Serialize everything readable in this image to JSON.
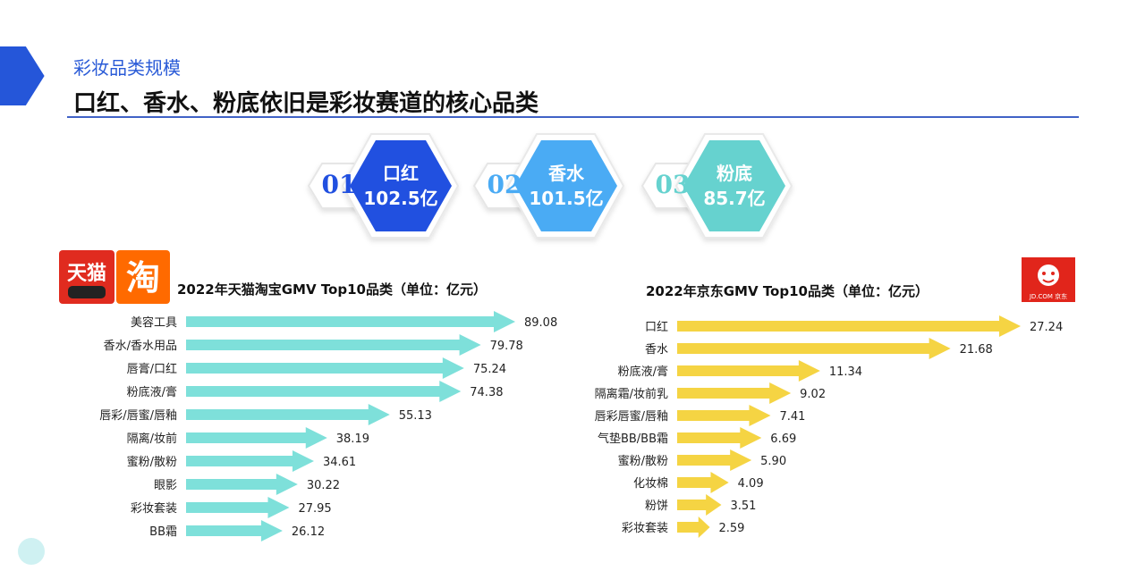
{
  "header": {
    "subtitle": "彩妆品类规模",
    "title": "口红、香水、粉底依旧是彩妆赛道的核心品类"
  },
  "highlights": [
    {
      "num": "01",
      "name": "口红",
      "value": "102.5亿",
      "color": "#2150e0",
      "num_color": "#2150e0"
    },
    {
      "num": "02",
      "name": "香水",
      "value": "101.5亿",
      "color": "#4aabf4",
      "num_color": "#4aabf4"
    },
    {
      "num": "03",
      "name": "粉底",
      "value": "85.7亿",
      "color": "#66d2cf",
      "num_color": "#66d2cf"
    }
  ],
  "logos": {
    "tmall_a": "天猫",
    "tmall_b": "淘",
    "jd": "JD.COM 京东"
  },
  "chart_data": [
    {
      "type": "bar",
      "orientation": "horizontal",
      "title": "2022年天猫淘宝GMV Top10品类（单位：亿元）",
      "categories": [
        "美容工具",
        "香水/香水用品",
        "唇膏/口红",
        "粉底液/膏",
        "唇彩/唇蜜/唇釉",
        "隔离/妆前",
        "蜜粉/散粉",
        "眼影",
        "彩妆套装",
        "BB霜"
      ],
      "values": [
        89.08,
        79.78,
        75.24,
        74.38,
        55.13,
        38.19,
        34.61,
        30.22,
        27.95,
        26.12
      ],
      "labels": [
        "89.08",
        "79.78",
        "75.24",
        "74.38",
        "55.13",
        "38.19",
        "34.61",
        "30.22",
        "27.95",
        "26.12"
      ],
      "color": "#7ee0da",
      "xlim": [
        0,
        89.08
      ]
    },
    {
      "type": "bar",
      "orientation": "horizontal",
      "title": "2022年京东GMV Top10品类（单位：亿元）",
      "categories": [
        "口红",
        "香水",
        "粉底液/膏",
        "隔离霜/妆前乳",
        "唇彩唇蜜/唇釉",
        "气垫BB/BB霜",
        "蜜粉/散粉",
        "化妆棉",
        "粉饼",
        "彩妆套装"
      ],
      "values": [
        27.24,
        21.68,
        11.34,
        9.02,
        7.41,
        6.69,
        5.9,
        4.09,
        3.51,
        2.59
      ],
      "labels": [
        "27.24",
        "21.68",
        "11.34",
        "9.02",
        "7.41",
        "6.69",
        "5.90",
        "4.09",
        "3.51",
        "2.59"
      ],
      "color": "#f5d443",
      "xlim": [
        0,
        27.24
      ]
    }
  ]
}
